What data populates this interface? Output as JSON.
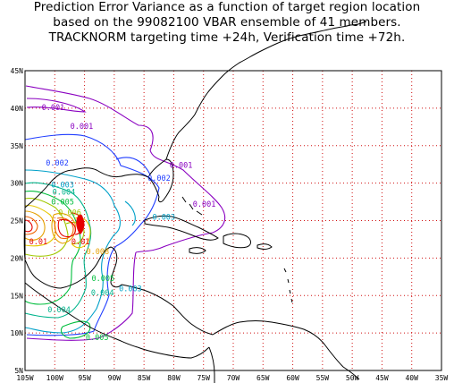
{
  "title_lines": [
    "Prediction Error Variance as a function of target region location",
    "based on the 99082100 VBAR ensemble of 41 members.",
    "TRACKNORM targeting time +24h, Verification time +72h."
  ],
  "map": {
    "lon_range": [
      -105,
      -35
    ],
    "lat_range": [
      5,
      45
    ],
    "x_tick_labels": [
      "105W",
      "100W",
      "95W",
      "90W",
      "85W",
      "80W",
      "75W",
      "70W",
      "65W",
      "60W",
      "55W",
      "50W",
      "45W",
      "40W",
      "35W"
    ],
    "y_tick_labels": [
      "5N",
      "10N",
      "15N",
      "20N",
      "25N",
      "30N",
      "35N",
      "40N",
      "45N"
    ],
    "grid_color": "#d01010",
    "coast_color": "#000000"
  },
  "contours": {
    "levels": [
      {
        "value": "0.001",
        "color": "#8a00c0"
      },
      {
        "value": "0.002",
        "color": "#1e3cff"
      },
      {
        "value": "0.003",
        "color": "#00a0c8"
      },
      {
        "value": "0.004",
        "color": "#00b48c"
      },
      {
        "value": "0.005",
        "color": "#00be3c"
      },
      {
        "value": "0.006",
        "color": "#a0c800"
      },
      {
        "value": "0.007",
        "color": "#e6c800"
      },
      {
        "value": "0.008",
        "color": "#e6a000"
      },
      {
        "value": "0.009",
        "color": "#f06400"
      },
      {
        "value": "0.01",
        "color": "#e60000"
      }
    ],
    "labels": [
      {
        "text": "0.001",
        "lon": -102.2,
        "lat": 40.1,
        "color": "#8a00c0"
      },
      {
        "text": "0.001",
        "lon": -97.4,
        "lat": 37.6,
        "color": "#8a00c0"
      },
      {
        "text": "0.001",
        "lon": -80.7,
        "lat": 32.4,
        "color": "#8a00c0"
      },
      {
        "text": "0.001",
        "lon": -76.8,
        "lat": 27.2,
        "color": "#8a00c0"
      },
      {
        "text": "0.002",
        "lon": -101.5,
        "lat": 32.7,
        "color": "#1e3cff"
      },
      {
        "text": "0.002",
        "lon": -84.4,
        "lat": 30.7,
        "color": "#1e3cff"
      },
      {
        "text": "0.003",
        "lon": -100.6,
        "lat": 29.8,
        "color": "#00a0c8"
      },
      {
        "text": "0.003",
        "lon": -83.6,
        "lat": 25.5,
        "color": "#00a0c8"
      },
      {
        "text": "0.003",
        "lon": -89.2,
        "lat": 15.9,
        "color": "#00a0c8"
      },
      {
        "text": "0.004",
        "lon": -100.4,
        "lat": 28.8,
        "color": "#00b48c"
      },
      {
        "text": "0.004",
        "lon": -93.9,
        "lat": 15.4,
        "color": "#00b48c"
      },
      {
        "text": "0.004",
        "lon": -101.2,
        "lat": 13.1,
        "color": "#00b48c"
      },
      {
        "text": "0.005",
        "lon": -100.6,
        "lat": 27.5,
        "color": "#00be3c"
      },
      {
        "text": "0.005",
        "lon": -93.8,
        "lat": 17.3,
        "color": "#00be3c"
      },
      {
        "text": "0.005",
        "lon": -94.8,
        "lat": 9.4,
        "color": "#00be3c"
      },
      {
        "text": "0.006",
        "lon": -99.4,
        "lat": 26.1,
        "color": "#a0c800"
      },
      {
        "text": "0.01",
        "lon": -104.3,
        "lat": 22.2,
        "color": "#e60000"
      },
      {
        "text": "0.01",
        "lon": -97.2,
        "lat": 22.2,
        "color": "#e60000"
      },
      {
        "text": "0.008",
        "lon": -94.7,
        "lat": 20.9,
        "color": "#e6a000"
      }
    ]
  }
}
